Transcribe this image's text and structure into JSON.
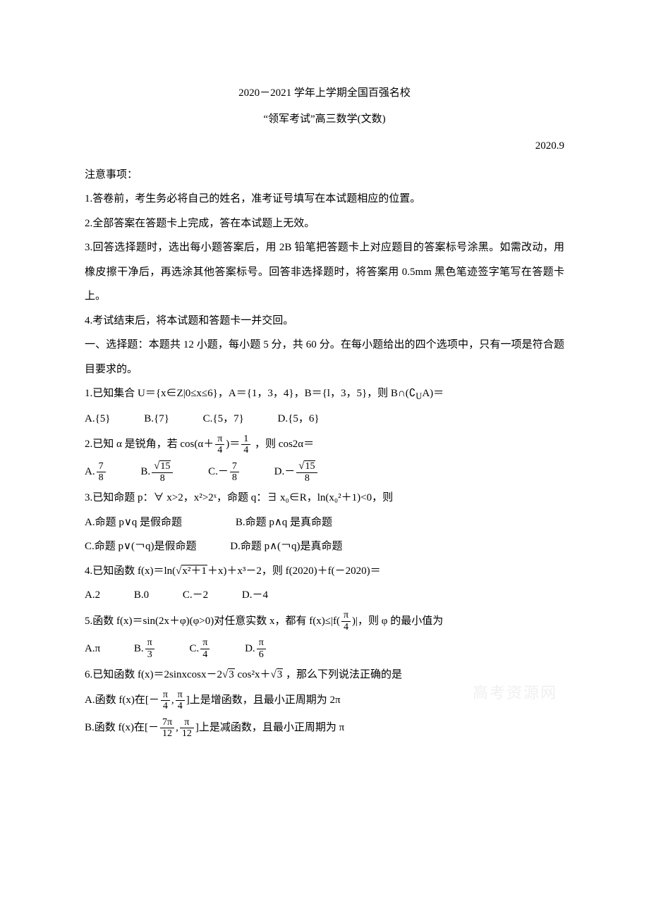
{
  "title": {
    "line1": "2020－2021 学年上学期全国百强名校",
    "line2": "“领军考试”高三数学(文数)",
    "date": "2020.9"
  },
  "notice_header": "注意事项：",
  "notices": [
    "1.答卷前，考生务必将自己的姓名，准考证号填写在本试题相应的位置。",
    "2.全部答案在答题卡上完成，答在本试题上无效。",
    "3.回答选择题时，选出每小题答案后，用 2B 铅笔把答题卡上对应题目的答案标号涂黑。如需改动，用橡皮擦干净后，再选涂其他答案标号。回答非选择题时，将答案用 0.5mm 黑色笔迹签字笔写在答题卡上。",
    "4.考试结束后，将本试题和答题卡一并交回。"
  ],
  "section1_header": "一、选择题：本题共 12 小题，每小题 5 分，共 60 分。在每小题给出的四个选项中，只有一项是符合题目要求的。",
  "q1": {
    "stem": "1.已知集合 U＝{x∈Z|0≤x≤6}，A＝{1，3，4}，B＝{l，3，5}，则 B∩(∁",
    "stem_sub": "U",
    "stem_after": "A)＝",
    "optA": "A.{5}",
    "optB": "B.{7}",
    "optC": "C.{5，7}",
    "optD": "D.{5，6}"
  },
  "q2": {
    "stem_before": "2.已知 α 是锐角，若 cos(α＋",
    "frac1_num": "π",
    "frac1_den": "4",
    "stem_mid": ")＝",
    "frac2_num": "1",
    "frac2_den": "4",
    "stem_after": " ，则 cos2α＝",
    "optA_pre": "A.",
    "optA_num": "7",
    "optA_den": "8",
    "optB_pre": "B.",
    "optB_num": "15",
    "optB_den": "8",
    "optC_pre": "C.－",
    "optC_num": "7",
    "optC_den": "8",
    "optD_pre": "D.－",
    "optD_num": "15",
    "optD_den": "8"
  },
  "q3": {
    "stem": "3.已知命题 p：∀ x>2，x²>2ˣ，命题 q：∃ x₀∈R，ln(x₀²＋1)<0，则",
    "optA": "A.命题 p∨q 是假命题",
    "optB": "B.命题 p∧q 是真命题",
    "optC": "C.命题 p∨(￢q)是假命题",
    "optD": "D.命题 p∧(￢q)是真命题"
  },
  "q4": {
    "stem_before": "4.已知函数 f(x)＝ln(",
    "sqrt_content": "x²＋1",
    "stem_after": "＋x)＋x³－2，则 f(2020)＋f(－2020)＝",
    "optA": "A.2",
    "optB": "B.0",
    "optC": "C.－2",
    "optD": "D.－4"
  },
  "q5": {
    "stem_before": "5.函数 f(x)＝sin(2x＋φ)(φ>0)对任意实数 x，都有 f(x)≤|f(",
    "frac_num": "π",
    "frac_den": "4",
    "stem_after": ")|，则 φ 的最小值为",
    "optA": "A.π",
    "optB_pre": "B.",
    "optB_num": "π",
    "optB_den": "3",
    "optC_pre": "C.",
    "optC_num": "π",
    "optC_den": "4",
    "optD_pre": "D.",
    "optD_num": "π",
    "optD_den": "6"
  },
  "q6": {
    "stem_before": "6.已知函数 f(x)＝2sinxcosx－2",
    "sqrt1": "3",
    "stem_mid": " cos²x＋",
    "sqrt2": "3",
    "stem_after": " ，那么下列说法正确的是",
    "optA_before": "A.函数 f(x)在[－",
    "optA_f1_num": "π",
    "optA_f1_den": "4",
    "optA_mid": ",",
    "optA_f2_num": "π",
    "optA_f2_den": "4",
    "optA_after": "]上是增函数，且最小正周期为 2π",
    "optB_before": "B.函数 f(x)在[－",
    "optB_f1_num": "7π",
    "optB_f1_den": "12",
    "optB_mid": ",",
    "optB_f2_num": "π",
    "optB_f2_den": "12",
    "optB_after": "]上是减函数，且最小正周期为 π"
  },
  "watermark": "高考资源网"
}
